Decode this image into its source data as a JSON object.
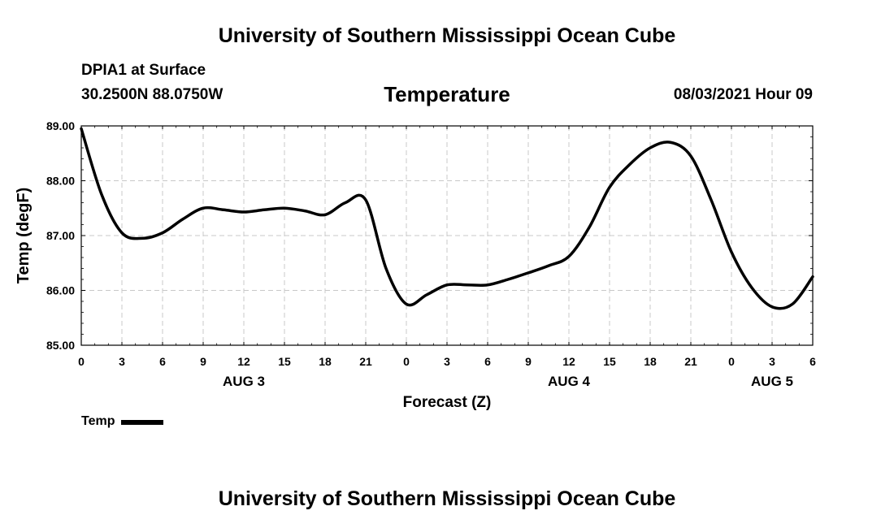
{
  "header": {
    "title": "University of Southern Mississippi Ocean Cube",
    "station": "DPIA1 at Surface",
    "coordinates": "30.2500N  88.0750W",
    "datetime": "08/03/2021 Hour 09"
  },
  "footer": {
    "title": "University of Southern Mississippi Ocean Cube"
  },
  "chart_data": {
    "type": "line",
    "title": "Temperature",
    "xlabel": "Forecast (Z)",
    "ylabel": "Temp (degF)",
    "ylim": [
      85.0,
      89.0
    ],
    "xlim": [
      0,
      54
    ],
    "y_ticks": [
      "85.00",
      "86.00",
      "87.00",
      "88.00",
      "89.00"
    ],
    "y_tick_values": [
      85,
      86,
      87,
      88,
      89
    ],
    "x_tick_values": [
      0,
      3,
      6,
      9,
      12,
      15,
      18,
      21,
      24,
      27,
      30,
      33,
      36,
      39,
      42,
      45,
      48,
      51,
      54
    ],
    "x_tick_labels": [
      "0",
      "3",
      "6",
      "9",
      "12",
      "15",
      "18",
      "21",
      "0",
      "3",
      "6",
      "9",
      "12",
      "15",
      "18",
      "21",
      "0",
      "3",
      "6"
    ],
    "day_labels": [
      {
        "label": "AUG 3",
        "hour": 12
      },
      {
        "label": "AUG 4",
        "hour": 36
      },
      {
        "label": "AUG 5",
        "hour": 51
      }
    ],
    "grid": true,
    "legend": "bottom-left",
    "series": [
      {
        "name": "Temp",
        "color": "#000000",
        "x": [
          0,
          1.5,
          3,
          4.5,
          6,
          7.5,
          9,
          10.5,
          12,
          13.5,
          15,
          16.5,
          18,
          19.5,
          21,
          22.5,
          24,
          25.5,
          27,
          28.5,
          30,
          31.5,
          33,
          34.5,
          36,
          37.5,
          39,
          40.5,
          42,
          43.5,
          45,
          46.5,
          48,
          49.5,
          51,
          52.5,
          54
        ],
        "values": [
          88.95,
          87.75,
          87.05,
          86.95,
          87.05,
          87.3,
          87.5,
          87.47,
          87.43,
          87.47,
          87.5,
          87.45,
          87.38,
          87.6,
          87.65,
          86.4,
          85.75,
          85.92,
          86.1,
          86.1,
          86.1,
          86.2,
          86.32,
          86.45,
          86.62,
          87.15,
          87.88,
          88.3,
          88.6,
          88.7,
          88.45,
          87.65,
          86.7,
          86.05,
          85.7,
          85.75,
          86.25
        ]
      }
    ]
  }
}
